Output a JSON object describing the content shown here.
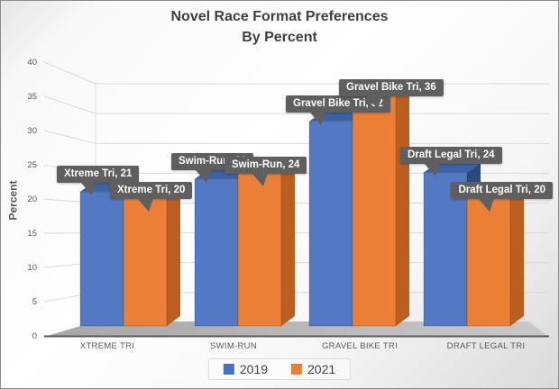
{
  "title": {
    "line1": "Novel Race Format Preferences",
    "line2": "By Percent"
  },
  "chart_data": {
    "type": "bar",
    "projection": "3d-clustered-column",
    "title": "Novel Race Format Preferences By Percent",
    "categories": [
      "XTREME TRI",
      "SWIM-RUN",
      "GRAVEL BIKE TRI",
      "DRAFT LEGAL TRI"
    ],
    "series": [
      {
        "name": "2019",
        "color": "#5379C4",
        "color_side": "#2B4A7D",
        "color_top": "#3C63A7",
        "legend_color": "#4472C4",
        "values": [
          21,
          23,
          32,
          24
        ],
        "data_labels": [
          "Xtreme Tri, 21",
          "Swim-Run, 23",
          "Gravel Bike Tri, 32",
          "Draft Legal Tri, 24"
        ]
      },
      {
        "name": "2021",
        "color": "#EC7F36",
        "color_side": "#BB5F20",
        "color_top": "#D96F26",
        "legend_color": "#ED7D31",
        "values": [
          20,
          24,
          36,
          20
        ],
        "data_labels": [
          "Xtreme Tri, 20",
          "Swim-Run, 24",
          "Gravel Bike Tri, 36",
          "Draft Legal Tri, 20"
        ]
      }
    ],
    "xlabel": "",
    "ylabel": "Percent",
    "ylim": [
      0,
      40
    ],
    "yticks": [
      0,
      5,
      10,
      15,
      20,
      25,
      30,
      35,
      40
    ],
    "grid": true,
    "legend_position": "bottom"
  },
  "colors": {
    "gridline": "#dadada",
    "axis_line": "#595959",
    "wall_edge": "#e2e2e2",
    "floor_dark": "#a6a6a6",
    "floor_light": "#c9c9c9",
    "callout_bg": "#5f5f5f",
    "label_text": "#595959",
    "title_text": "#3f3f3f"
  }
}
